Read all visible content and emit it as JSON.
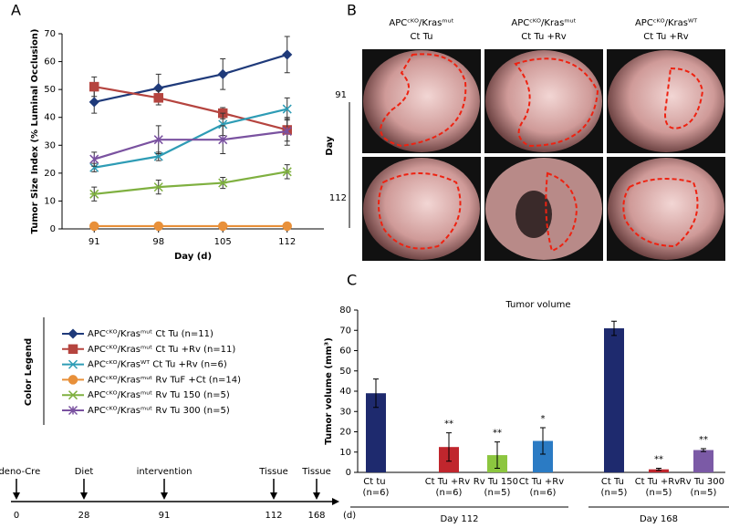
{
  "panels": {
    "a": "A",
    "b": "B",
    "c": "C"
  },
  "chart_data": [
    {
      "type": "line",
      "ylabel": "Tumor Size Index (% Luminal Occlusion)",
      "xlabel": "Day (d)",
      "x": [
        91,
        98,
        105,
        112
      ],
      "xlim": [
        87.5,
        116
      ],
      "xticks": [
        91,
        98,
        105,
        112
      ],
      "ylim": [
        0,
        70
      ],
      "yticks": [
        0,
        10,
        20,
        30,
        40,
        50,
        60,
        70
      ],
      "series": [
        {
          "name": "APCᶜᴷᴼ/Krasᵐᵘᵗ Ct Tu (n=11)",
          "color": "#1f3a7a",
          "marker": "diamond",
          "values": [
            45.5,
            50.5,
            55.5,
            62.5
          ],
          "errors": [
            4,
            5,
            5.5,
            6.5
          ]
        },
        {
          "name": "APCᶜᴷᴼ/Krasᵐᵘᵗ Ct Tu  +Rv (n=11)",
          "color": "#b5443f",
          "marker": "square",
          "values": [
            51,
            47,
            41.5,
            35.5
          ],
          "errors": [
            3.5,
            2.5,
            2,
            4
          ]
        },
        {
          "name": "APCᶜᴷᴼ/Krasᵂᵀ Ct Tu  +Rv (n=6)",
          "color": "#2e9cb5",
          "marker": "x",
          "values": [
            22,
            26,
            37.5,
            43
          ],
          "errors": [
            1.5,
            1.5,
            4,
            4
          ]
        },
        {
          "name": "APCᶜᴷᴼ/Krasᵐᵘᵗ Rv TuF +Ct (n=14)",
          "color": "#e8903a",
          "marker": "circle",
          "values": [
            1,
            1,
            1,
            1
          ],
          "errors": [
            0,
            0,
            0,
            0
          ]
        },
        {
          "name": "APCᶜᴷᴼ/Krasᵐᵘᵗ Rv Tu 150 (n=5)",
          "color": "#7fb040",
          "marker": "dash",
          "values": [
            12.5,
            15,
            16.5,
            20.5
          ],
          "errors": [
            2.5,
            2.5,
            2,
            2.5
          ]
        },
        {
          "name": "APCᶜᴷᴼ/Krasᵐᵘᵗ Rv Tu 300 (n=5)",
          "color": "#7a52a0",
          "marker": "star",
          "values": [
            25,
            32,
            32,
            35
          ],
          "errors": [
            2.5,
            5,
            5,
            5
          ]
        }
      ],
      "legend_title": "Color Legend"
    },
    {
      "type": "bar",
      "title": "Tumor volume",
      "ylabel": "Tumor volume (mm³)",
      "categories": [
        "Ct tu (n=6)",
        "Ct Tu +Rv (n=6)",
        "Rv Tu 150 (n=5)",
        "Ct Tu +Rv (n=6)",
        "Ct Tu (n=5)",
        "Ct Tu +Rv (n=5)",
        "Rv Tu 300 (n=5)"
      ],
      "values": [
        39,
        12.5,
        8.5,
        15.5,
        71,
        1.5,
        11
      ],
      "errors": [
        7,
        7,
        6.5,
        6.5,
        3.5,
        0.5,
        0.7
      ],
      "colors": [
        "#1e2a6e",
        "#c0262d",
        "#8cc63f",
        "#2b7bc4",
        "#1e2a6e",
        "#c0262d",
        "#7b5aa6"
      ],
      "annotations": [
        null,
        "**",
        "**",
        "*",
        null,
        "**",
        "**"
      ],
      "groups": [
        {
          "label": "Day 112",
          "from": 0,
          "to": 3
        },
        {
          "label": "Day 168",
          "from": 4,
          "to": 6
        }
      ],
      "ylim": [
        0,
        80
      ],
      "yticks": [
        0,
        10,
        20,
        30,
        40,
        50,
        60,
        70,
        80
      ]
    }
  ],
  "images": {
    "columns": [
      {
        "line1": "APCᶜᴷᴼ/Krasᵐᵘᵗ",
        "line2": "Ct Tu"
      },
      {
        "line1": "APCᶜᴷᴼ/Krasᵐᵘᵗ",
        "line2": "Ct Tu +Rv"
      },
      {
        "line1": "APCᶜᴷᴼ/Krasᵂᵀ",
        "line2": "Ct Tu +Rv"
      }
    ],
    "rows": [
      "91",
      "112"
    ],
    "row_title": "Day"
  },
  "timeline": {
    "events": [
      {
        "label": "Adeno-Cre",
        "day": "0"
      },
      {
        "label": "Diet",
        "day": "28"
      },
      {
        "label": "intervention",
        "day": "91"
      },
      {
        "label": "Tissue",
        "day": "112"
      },
      {
        "label": "Tissue",
        "day": "168"
      }
    ],
    "unit": "(d)"
  }
}
